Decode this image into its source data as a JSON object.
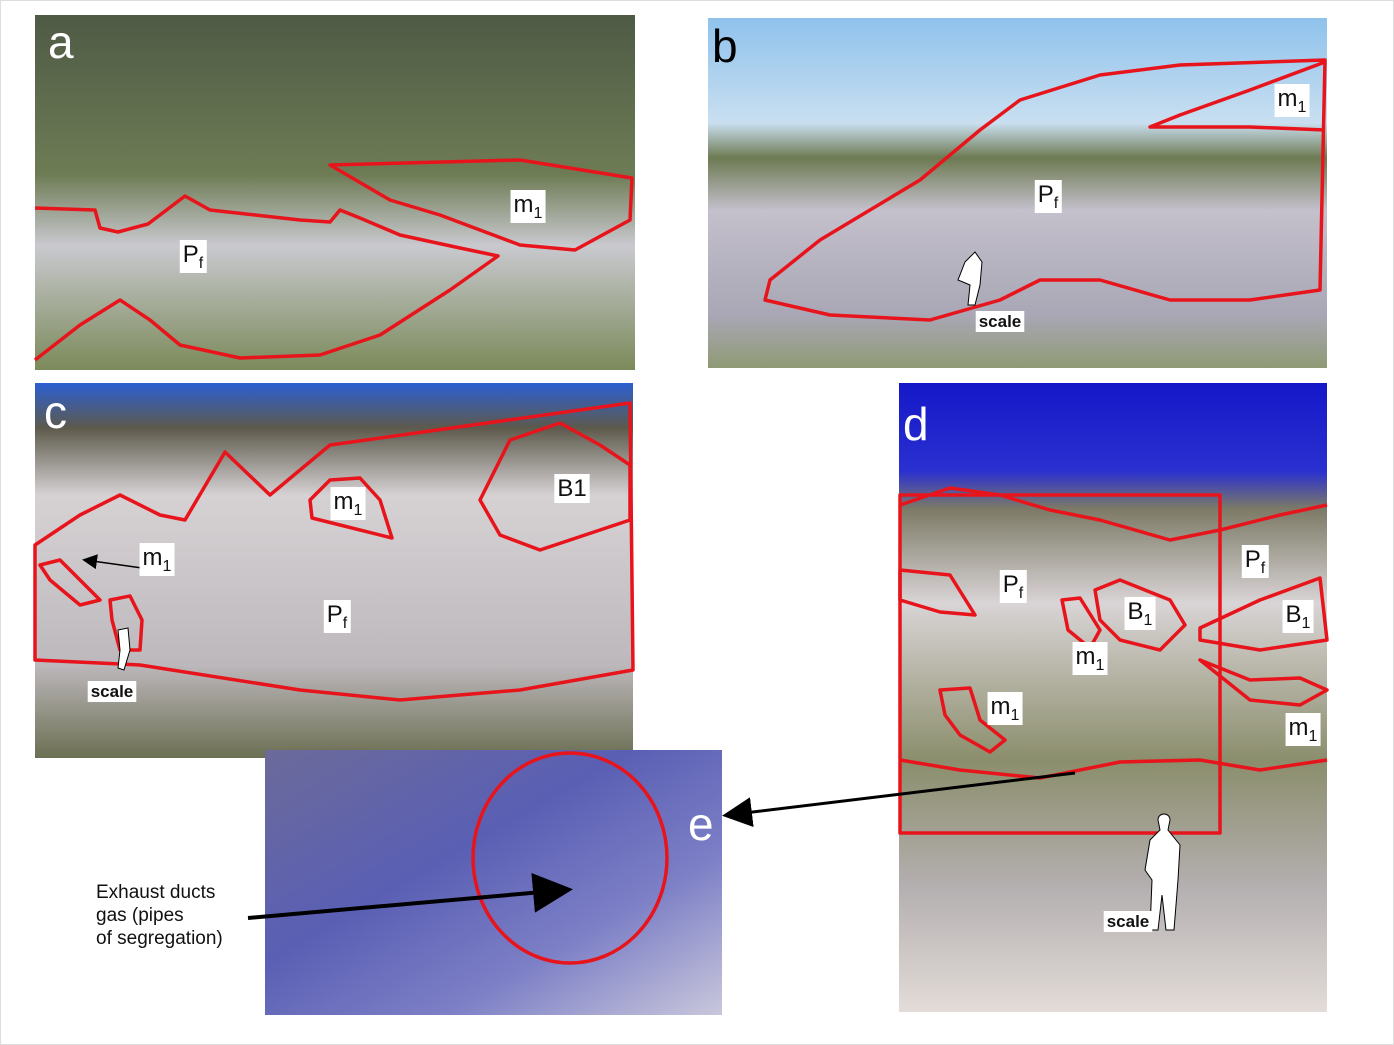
{
  "panels": [
    {
      "letter": "a",
      "labels": [
        {
          "main": "m",
          "sub": "1"
        },
        {
          "main": "P",
          "sub": "f"
        }
      ]
    },
    {
      "letter": "b",
      "labels": [
        {
          "main": "m",
          "sub": "1"
        },
        {
          "main": "P",
          "sub": "f"
        },
        {
          "main": "scale"
        }
      ]
    },
    {
      "letter": "c",
      "labels": [
        {
          "main": "m",
          "sub": "1"
        },
        {
          "main": "B1"
        },
        {
          "main": "m",
          "sub": "1"
        },
        {
          "main": "P",
          "sub": "f"
        },
        {
          "main": "scale"
        }
      ]
    },
    {
      "letter": "d",
      "labels": [
        {
          "main": "P",
          "sub": "f"
        },
        {
          "main": "P",
          "sub": "f"
        },
        {
          "main": "B",
          "sub": "1"
        },
        {
          "main": "B",
          "sub": "1"
        },
        {
          "main": "m",
          "sub": "1"
        },
        {
          "main": "m",
          "sub": "1"
        },
        {
          "main": "m",
          "sub": "1"
        },
        {
          "main": "scale"
        }
      ]
    },
    {
      "letter": "e",
      "labels": []
    }
  ],
  "annotation": {
    "lines": [
      "Exhaust ducts",
      "gas (pipes",
      "of segregation)"
    ]
  }
}
